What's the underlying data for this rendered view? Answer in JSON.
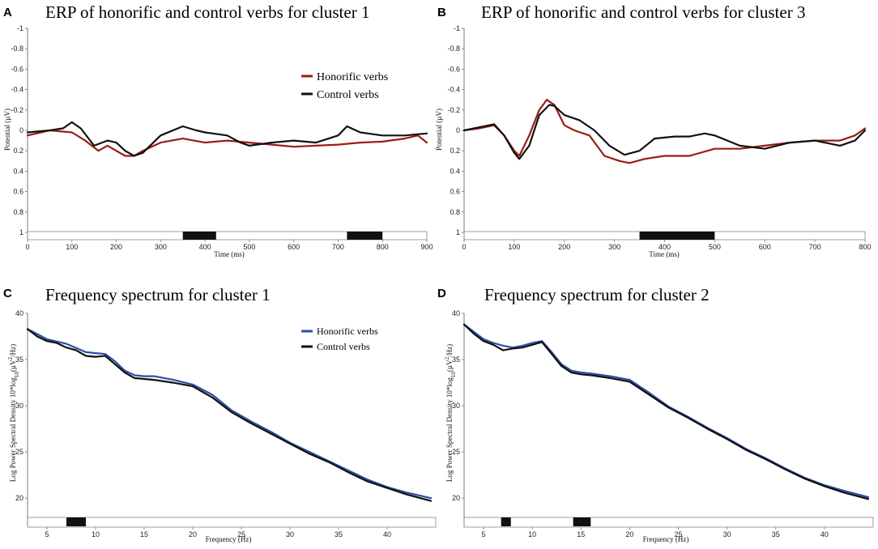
{
  "colors": {
    "honorific_erp": "#9b1c14",
    "honorific_spec": "#2b4ea8",
    "control": "#111111"
  },
  "chart_data": [
    {
      "panel": "A",
      "type": "line",
      "title": "ERP of honorific and control verbs for cluster 1",
      "xlabel": "Time (ms)",
      "ylabel": "Potential (µV)",
      "xlim": [
        0,
        900
      ],
      "ylim": [
        -1,
        1
      ],
      "y_inverted": true,
      "x_ticks": [
        "0",
        "100",
        "200",
        "300",
        "400",
        "500",
        "600",
        "700",
        "800",
        "900"
      ],
      "y_ticks": [
        "-1",
        "-0.8",
        "-0.6",
        "-0.4",
        "-0.2",
        "0",
        "0.2",
        "0.4",
        "0.6",
        "0.8",
        "1"
      ],
      "legend": [
        "Honorific verbs",
        "Control verbs"
      ],
      "significance_bars": [
        [
          350,
          425
        ],
        [
          720,
          800
        ]
      ],
      "series": [
        {
          "name": "Honorific verbs",
          "x": [
            0,
            50,
            100,
            130,
            160,
            180,
            200,
            220,
            240,
            260,
            300,
            350,
            400,
            450,
            500,
            550,
            600,
            650,
            700,
            750,
            800,
            850,
            880,
            900
          ],
          "y": [
            0.05,
            0.0,
            0.02,
            0.1,
            0.2,
            0.15,
            0.2,
            0.25,
            0.25,
            0.2,
            0.12,
            0.08,
            0.12,
            0.1,
            0.12,
            0.14,
            0.16,
            0.15,
            0.14,
            0.12,
            0.11,
            0.08,
            0.05,
            0.12
          ]
        },
        {
          "name": "Control verbs",
          "x": [
            0,
            50,
            80,
            100,
            120,
            150,
            180,
            200,
            220,
            240,
            260,
            300,
            350,
            380,
            400,
            450,
            480,
            500,
            550,
            600,
            650,
            700,
            720,
            750,
            800,
            850,
            900
          ],
          "y": [
            0.02,
            0.0,
            -0.02,
            -0.08,
            -0.02,
            0.15,
            0.1,
            0.12,
            0.2,
            0.25,
            0.22,
            0.05,
            -0.04,
            0.0,
            0.02,
            0.05,
            0.12,
            0.15,
            0.12,
            0.1,
            0.12,
            0.05,
            -0.04,
            0.02,
            0.05,
            0.05,
            0.03
          ]
        }
      ]
    },
    {
      "panel": "B",
      "type": "line",
      "title": "ERP of honorific and control verbs for cluster 3",
      "xlabel": "Time (ms)",
      "ylabel": "Potential (µV)",
      "xlim": [
        0,
        800
      ],
      "ylim": [
        -1,
        1
      ],
      "y_inverted": true,
      "x_ticks": [
        "0",
        "100",
        "200",
        "300",
        "400",
        "500",
        "600",
        "700",
        "800"
      ],
      "y_ticks": [
        "-1",
        "-0.8",
        "-0.6",
        "-0.4",
        "-0.2",
        "0",
        "0.2",
        "0.4",
        "0.6",
        "0.8",
        "1"
      ],
      "significance_bars": [
        [
          350,
          500
        ]
      ],
      "series": [
        {
          "name": "Honorific verbs",
          "x": [
            0,
            30,
            60,
            80,
            100,
            110,
            130,
            150,
            165,
            180,
            200,
            220,
            250,
            280,
            310,
            330,
            360,
            400,
            450,
            500,
            550,
            600,
            650,
            700,
            750,
            780,
            800
          ],
          "y": [
            0.0,
            -0.02,
            -0.05,
            0.05,
            0.2,
            0.25,
            0.05,
            -0.2,
            -0.3,
            -0.25,
            -0.05,
            0.0,
            0.05,
            0.25,
            0.3,
            0.32,
            0.28,
            0.25,
            0.25,
            0.18,
            0.18,
            0.15,
            0.12,
            0.1,
            0.1,
            0.05,
            -0.02
          ]
        },
        {
          "name": "Control verbs",
          "x": [
            0,
            30,
            60,
            80,
            100,
            110,
            130,
            150,
            170,
            180,
            200,
            230,
            260,
            290,
            320,
            350,
            380,
            420,
            450,
            480,
            500,
            550,
            600,
            650,
            700,
            750,
            780,
            800
          ],
          "y": [
            0.0,
            -0.03,
            -0.06,
            0.05,
            0.22,
            0.28,
            0.15,
            -0.15,
            -0.25,
            -0.24,
            -0.15,
            -0.1,
            0.0,
            0.15,
            0.24,
            0.2,
            0.08,
            0.06,
            0.06,
            0.03,
            0.05,
            0.15,
            0.18,
            0.12,
            0.1,
            0.15,
            0.1,
            0.0
          ]
        }
      ]
    },
    {
      "panel": "C",
      "type": "line",
      "title": "Frequency spectrum for cluster 1",
      "xlabel": "Frequency (Hz)",
      "ylabel": "Log Power Spectral Density 10*log10(µV²/Hz)",
      "xlim": [
        3,
        45
      ],
      "ylim": [
        18,
        40
      ],
      "x_ticks": [
        "5",
        "10",
        "15",
        "20",
        "25",
        "30",
        "35",
        "40"
      ],
      "y_ticks": [
        "20",
        "25",
        "30",
        "35",
        "40"
      ],
      "legend": [
        "Honorific verbs",
        "Control verbs"
      ],
      "significance_bars": [
        [
          7,
          9
        ]
      ],
      "series": [
        {
          "name": "Honorific verbs",
          "x": [
            3,
            5,
            7,
            9,
            10,
            11,
            12,
            13,
            14,
            15,
            16,
            18,
            20,
            22,
            24,
            26,
            28,
            30,
            32,
            34,
            36,
            38,
            40,
            42,
            44.5
          ],
          "y": [
            38.3,
            37.2,
            36.7,
            35.8,
            35.7,
            35.6,
            34.8,
            33.8,
            33.3,
            33.2,
            33.2,
            32.8,
            32.3,
            31.2,
            29.5,
            28.3,
            27.2,
            26.0,
            25.0,
            24.0,
            23.0,
            22.0,
            21.2,
            20.6,
            20.0
          ]
        },
        {
          "name": "Control verbs",
          "x": [
            3,
            4,
            5,
            6,
            7,
            8,
            9,
            10,
            11,
            12,
            13,
            14,
            15,
            16,
            18,
            20,
            22,
            24,
            26,
            28,
            30,
            32,
            34,
            36,
            38,
            40,
            42,
            44.5
          ],
          "y": [
            38.3,
            37.5,
            37.0,
            36.8,
            36.3,
            36.0,
            35.4,
            35.3,
            35.4,
            34.5,
            33.6,
            33.0,
            32.9,
            32.8,
            32.5,
            32.1,
            30.9,
            29.3,
            28.1,
            27.0,
            25.9,
            24.8,
            23.9,
            22.8,
            21.8,
            21.1,
            20.4,
            19.7
          ]
        }
      ]
    },
    {
      "panel": "D",
      "type": "line",
      "title": "Frequency spectrum for cluster 2",
      "xlabel": "Frequency (Hz)",
      "ylabel": "Log Power Spectral Density 10*log10(µV²/Hz)",
      "xlim": [
        3,
        45
      ],
      "ylim": [
        18,
        40
      ],
      "x_ticks": [
        "5",
        "10",
        "15",
        "20",
        "25",
        "30",
        "35",
        "40"
      ],
      "y_ticks": [
        "20",
        "25",
        "30",
        "35",
        "40"
      ],
      "significance_bars": [
        [
          6.8,
          7.8
        ],
        [
          14.2,
          16
        ]
      ],
      "series": [
        {
          "name": "Honorific verbs",
          "x": [
            3,
            4,
            5,
            6,
            7,
            8,
            9,
            10,
            11,
            12,
            13,
            14,
            15,
            16,
            18,
            20,
            22,
            24,
            26,
            28,
            30,
            32,
            34,
            36,
            38,
            40,
            42,
            44.5
          ],
          "y": [
            38.8,
            38.0,
            37.2,
            36.8,
            36.5,
            36.3,
            36.5,
            36.8,
            37.0,
            35.8,
            34.5,
            33.8,
            33.6,
            33.5,
            33.2,
            32.8,
            31.4,
            29.9,
            28.8,
            27.6,
            26.5,
            25.3,
            24.3,
            23.2,
            22.2,
            21.4,
            20.8,
            20.1
          ]
        },
        {
          "name": "Control verbs",
          "x": [
            3,
            4,
            5,
            6,
            7,
            8,
            9,
            10,
            11,
            12,
            13,
            14,
            15,
            16,
            18,
            20,
            22,
            24,
            26,
            28,
            30,
            32,
            34,
            36,
            38,
            40,
            42,
            44.5
          ],
          "y": [
            38.8,
            37.8,
            37.0,
            36.6,
            36.0,
            36.2,
            36.3,
            36.6,
            36.9,
            35.6,
            34.3,
            33.6,
            33.4,
            33.3,
            33.0,
            32.6,
            31.2,
            29.8,
            28.7,
            27.5,
            26.4,
            25.2,
            24.2,
            23.1,
            22.1,
            21.3,
            20.6,
            19.9
          ]
        }
      ]
    }
  ]
}
